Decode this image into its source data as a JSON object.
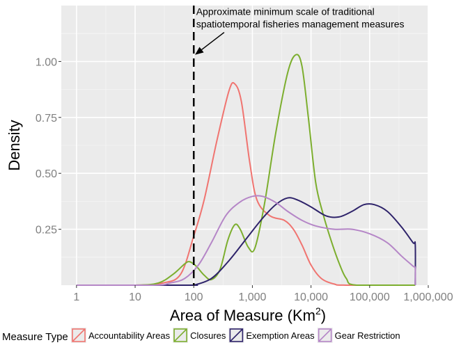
{
  "chart_data": {
    "type": "area",
    "xlabel": "Area of Measure (Km",
    "xlabel_superscript": "2",
    "xlabel_suffix": ")",
    "ylabel": "Density",
    "x_scale": "log10",
    "xlim": [
      0.55,
      1000000
    ],
    "ylim": [
      0,
      1.25
    ],
    "grid": true,
    "x_ticks": [
      {
        "value": 1,
        "label": "1"
      },
      {
        "value": 10,
        "label": "10"
      },
      {
        "value": 100,
        "label": "100"
      },
      {
        "value": 1000,
        "label": "1,000"
      },
      {
        "value": 10000,
        "label": "10,000"
      },
      {
        "value": 100000,
        "label": "100,000"
      },
      {
        "value": 1000000,
        "label": "1,000,000"
      }
    ],
    "y_ticks": [
      {
        "value": 0.25,
        "label": "0.25"
      },
      {
        "value": 0.5,
        "label": "0.50"
      },
      {
        "value": 0.75,
        "label": "0.75"
      },
      {
        "value": 1.0,
        "label": "1.00"
      }
    ],
    "reference_line": {
      "x": 100,
      "style": "dashed"
    },
    "annotation": {
      "line1": "Approximate minimum scale of traditional",
      "line2": "spatiotemporal fisheries management measures",
      "arrow_from": {
        "x": 330,
        "y": 1.13
      },
      "arrow_to": {
        "x": 105,
        "y": 1.03
      },
      "text_anchor": {
        "x": 110,
        "y": 1.22
      }
    },
    "legend": {
      "title": "Measure Type",
      "position": "bottom"
    },
    "series": [
      {
        "name": "Accountability Areas",
        "color": "#f07470",
        "points": [
          [
            1,
            0
          ],
          [
            10,
            0
          ],
          [
            30,
            0.01
          ],
          [
            60,
            0.05
          ],
          [
            100,
            0.22
          ],
          [
            150,
            0.38
          ],
          [
            250,
            0.65
          ],
          [
            400,
            0.87
          ],
          [
            500,
            0.9
          ],
          [
            650,
            0.82
          ],
          [
            900,
            0.55
          ],
          [
            1200,
            0.38
          ],
          [
            2000,
            0.31
          ],
          [
            3500,
            0.29
          ],
          [
            5000,
            0.25
          ],
          [
            7000,
            0.18
          ],
          [
            10000,
            0.09
          ],
          [
            15000,
            0.03
          ],
          [
            25000,
            0.005
          ],
          [
            40000,
            0
          ],
          [
            600000,
            0
          ]
        ]
      },
      {
        "name": "Closures",
        "color": "#7cae2e",
        "points": [
          [
            1,
            0
          ],
          [
            10,
            0
          ],
          [
            25,
            0.01
          ],
          [
            45,
            0.05
          ],
          [
            70,
            0.095
          ],
          [
            85,
            0.105
          ],
          [
            110,
            0.085
          ],
          [
            150,
            0.045
          ],
          [
            200,
            0.025
          ],
          [
            280,
            0.07
          ],
          [
            380,
            0.2
          ],
          [
            500,
            0.27
          ],
          [
            620,
            0.25
          ],
          [
            850,
            0.17
          ],
          [
            1100,
            0.165
          ],
          [
            1600,
            0.36
          ],
          [
            2500,
            0.68
          ],
          [
            4000,
            0.95
          ],
          [
            5500,
            1.03
          ],
          [
            7000,
            0.98
          ],
          [
            9000,
            0.75
          ],
          [
            12000,
            0.46
          ],
          [
            16000,
            0.32
          ],
          [
            22000,
            0.2
          ],
          [
            30000,
            0.1
          ],
          [
            40000,
            0.03
          ],
          [
            60000,
            0
          ],
          [
            600000,
            0
          ]
        ]
      },
      {
        "name": "Exemption Areas",
        "color": "#2e236a",
        "points": [
          [
            1,
            0
          ],
          [
            80,
            0
          ],
          [
            100,
            0
          ],
          [
            200,
            0.03
          ],
          [
            400,
            0.11
          ],
          [
            800,
            0.21
          ],
          [
            1500,
            0.3
          ],
          [
            2500,
            0.36
          ],
          [
            4000,
            0.39
          ],
          [
            6000,
            0.38
          ],
          [
            10000,
            0.35
          ],
          [
            18000,
            0.31
          ],
          [
            30000,
            0.305
          ],
          [
            50000,
            0.33
          ],
          [
            80000,
            0.36
          ],
          [
            120000,
            0.36
          ],
          [
            200000,
            0.33
          ],
          [
            350000,
            0.26
          ],
          [
            550000,
            0.19
          ],
          [
            600000,
            0.18
          ],
          [
            600001,
            0
          ]
        ]
      },
      {
        "name": "Gear Restriction",
        "color": "#b586c7",
        "points": [
          [
            1,
            0
          ],
          [
            20,
            0
          ],
          [
            40,
            0.01
          ],
          [
            70,
            0.03
          ],
          [
            120,
            0.09
          ],
          [
            200,
            0.19
          ],
          [
            350,
            0.31
          ],
          [
            600,
            0.37
          ],
          [
            1000,
            0.397
          ],
          [
            1500,
            0.397
          ],
          [
            2500,
            0.37
          ],
          [
            4000,
            0.33
          ],
          [
            7000,
            0.29
          ],
          [
            12000,
            0.265
          ],
          [
            25000,
            0.25
          ],
          [
            50000,
            0.25
          ],
          [
            100000,
            0.23
          ],
          [
            200000,
            0.19
          ],
          [
            350000,
            0.13
          ],
          [
            550000,
            0.085
          ],
          [
            600000,
            0.075
          ],
          [
            600001,
            0
          ]
        ]
      }
    ]
  }
}
